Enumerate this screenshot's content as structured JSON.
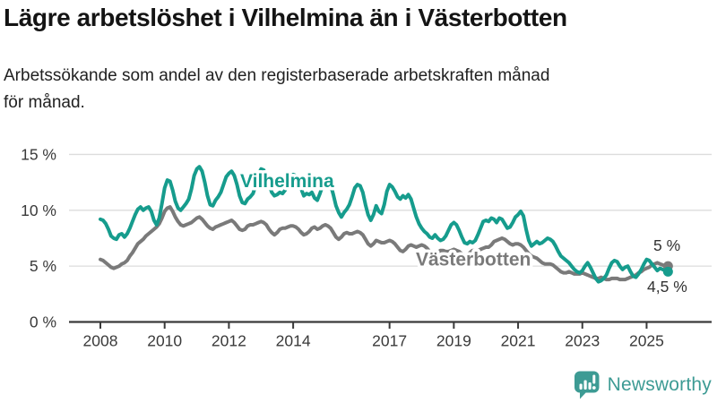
{
  "chart_data": {
    "type": "line",
    "title": "Lägre arbetslöshet i Vilhelmina än i Västerbotten",
    "subtitle_lines": [
      "Arbetssökande som andel av den registerbaserade arbetskraften månad",
      "för månad."
    ],
    "x_unit": "month",
    "x_start": "2008-01",
    "x_end": "2025-09",
    "x_tick_labels": [
      "2008",
      "2010",
      "2012",
      "2014",
      "2017",
      "2019",
      "2021",
      "2023",
      "2025"
    ],
    "x_tick_years": [
      2008,
      2010,
      2012,
      2014,
      2017,
      2019,
      2021,
      2023,
      2025
    ],
    "y_tick_labels": [
      "0 %",
      "5 %",
      "10 %",
      "15 %"
    ],
    "y_tick_values": [
      0,
      5,
      10,
      15
    ],
    "ylim": [
      0,
      16.8
    ],
    "grid": "horizontal",
    "legend": "inline-series-labels",
    "colors": {
      "axis_text": "#3a3a3a",
      "gridline": "#dcdcdc",
      "annotation_text": "#333333"
    },
    "series": [
      {
        "name": "Vilhelmina",
        "color": "#169c8d",
        "end_label": "4,5 %",
        "latest_value": 4.5,
        "values": [
          9.2,
          9.1,
          8.8,
          8.3,
          7.7,
          7.5,
          7.4,
          7.8,
          7.9,
          7.6,
          7.9,
          8.4,
          9.0,
          9.6,
          10.1,
          10.3,
          10.0,
          10.2,
          10.3,
          9.9,
          9.1,
          8.7,
          9.3,
          10.6,
          12.0,
          12.7,
          12.6,
          11.8,
          10.8,
          10.2,
          10.0,
          10.3,
          10.6,
          11.0,
          11.9,
          13.1,
          13.7,
          13.9,
          13.5,
          12.5,
          11.3,
          10.5,
          10.4,
          10.9,
          11.2,
          11.6,
          12.3,
          13.0,
          13.3,
          13.5,
          13.1,
          12.3,
          11.3,
          10.7,
          10.6,
          11.0,
          11.2,
          11.5,
          12.2,
          13.2,
          13.7,
          13.6,
          13.1,
          12.4,
          11.6,
          11.3,
          11.4,
          11.6,
          11.5,
          11.8,
          12.4,
          13.0,
          13.2,
          13.1,
          12.6,
          11.9,
          11.3,
          11.5,
          11.4,
          11.6,
          11.1,
          10.9,
          11.5,
          12.2,
          12.9,
          12.8,
          12.3,
          11.4,
          10.4,
          9.8,
          9.4,
          9.8,
          10.1,
          10.5,
          11.2,
          12.0,
          12.3,
          12.2,
          11.6,
          10.5,
          9.6,
          9.1,
          9.6,
          10.4,
          9.9,
          9.7,
          10.5,
          11.7,
          12.3,
          12.1,
          11.7,
          11.2,
          11.0,
          11.3,
          11.1,
          11.4,
          11.0,
          10.2,
          9.4,
          8.8,
          8.4,
          8.1,
          7.9,
          7.6,
          7.5,
          7.8,
          7.5,
          7.3,
          7.4,
          7.7,
          8.2,
          8.7,
          8.9,
          8.7,
          8.2,
          7.6,
          7.1,
          7.0,
          7.2,
          7.1,
          7.3,
          7.8,
          8.4,
          9.0,
          9.1,
          9.0,
          9.3,
          9.2,
          8.9,
          9.3,
          9.2,
          8.8,
          8.4,
          8.5,
          8.9,
          9.4,
          9.6,
          9.9,
          9.5,
          8.3,
          7.3,
          6.8,
          7.0,
          7.2,
          7.0,
          7.1,
          7.3,
          7.5,
          7.4,
          7.2,
          6.8,
          6.3,
          5.9,
          5.7,
          5.5,
          5.3,
          5.0,
          4.7,
          4.5,
          4.4,
          4.6,
          5.0,
          5.3,
          4.9,
          4.4,
          3.9,
          3.6,
          3.7,
          3.9,
          4.2,
          4.8,
          5.3,
          5.5,
          5.4,
          5.0,
          4.7,
          4.9,
          5.0,
          4.5,
          4.1,
          4.0,
          4.3,
          4.7,
          5.2,
          5.6,
          5.5,
          5.2,
          4.9,
          4.6,
          4.8,
          4.7,
          4.6,
          4.5
        ]
      },
      {
        "name": "Västerbotten",
        "color": "#7a7a7a",
        "end_label": "5 %",
        "latest_value": 5.0,
        "values": [
          5.6,
          5.5,
          5.3,
          5.1,
          4.9,
          4.8,
          4.9,
          5.0,
          5.2,
          5.3,
          5.5,
          5.9,
          6.2,
          6.6,
          7.0,
          7.2,
          7.4,
          7.7,
          7.9,
          8.1,
          8.3,
          8.5,
          8.8,
          9.3,
          9.9,
          10.2,
          10.3,
          9.9,
          9.4,
          9.0,
          8.7,
          8.6,
          8.7,
          8.8,
          8.9,
          9.1,
          9.3,
          9.4,
          9.2,
          8.9,
          8.6,
          8.4,
          8.3,
          8.5,
          8.6,
          8.7,
          8.8,
          8.9,
          9.0,
          9.1,
          8.9,
          8.6,
          8.3,
          8.2,
          8.3,
          8.6,
          8.7,
          8.7,
          8.8,
          8.9,
          9.0,
          8.9,
          8.7,
          8.3,
          8.0,
          7.8,
          8.0,
          8.3,
          8.4,
          8.4,
          8.5,
          8.6,
          8.6,
          8.5,
          8.3,
          8.0,
          7.8,
          7.9,
          8.1,
          8.4,
          8.5,
          8.3,
          8.4,
          8.6,
          8.7,
          8.6,
          8.4,
          8.0,
          7.6,
          7.4,
          7.6,
          7.9,
          8.0,
          7.9,
          7.9,
          8.0,
          8.1,
          8.0,
          7.8,
          7.4,
          7.0,
          6.8,
          7.0,
          7.3,
          7.2,
          7.1,
          7.1,
          7.2,
          7.3,
          7.2,
          7.0,
          6.7,
          6.4,
          6.3,
          6.5,
          6.8,
          6.9,
          6.8,
          6.7,
          6.8,
          6.9,
          6.8,
          6.6,
          6.3,
          6.1,
          6.0,
          6.2,
          6.4,
          6.4,
          6.3,
          6.3,
          6.4,
          6.5,
          6.4,
          6.3,
          6.1,
          6.0,
          6.0,
          6.2,
          6.4,
          6.4,
          6.4,
          6.5,
          6.6,
          6.7,
          6.7,
          6.9,
          7.2,
          7.3,
          7.4,
          7.5,
          7.4,
          7.2,
          7.0,
          6.9,
          7.0,
          7.0,
          6.9,
          6.7,
          6.4,
          6.1,
          5.9,
          5.8,
          5.7,
          5.5,
          5.3,
          5.2,
          5.2,
          5.2,
          5.1,
          4.9,
          4.7,
          4.5,
          4.4,
          4.4,
          4.5,
          4.4,
          4.3,
          4.3,
          4.3,
          4.4,
          4.3,
          4.2,
          4.1,
          4.0,
          3.9,
          3.9,
          4.0,
          3.9,
          3.8,
          3.8,
          3.9,
          3.9,
          3.9,
          3.8,
          3.8,
          3.8,
          3.9,
          4.0,
          4.1,
          4.2,
          4.4,
          4.5,
          4.7,
          4.8,
          4.9,
          5.1,
          5.2,
          5.3,
          5.2,
          5.1,
          5.0,
          5.0
        ]
      }
    ]
  },
  "logo": {
    "text": "Newsworthy",
    "color": "#3d9b94"
  }
}
